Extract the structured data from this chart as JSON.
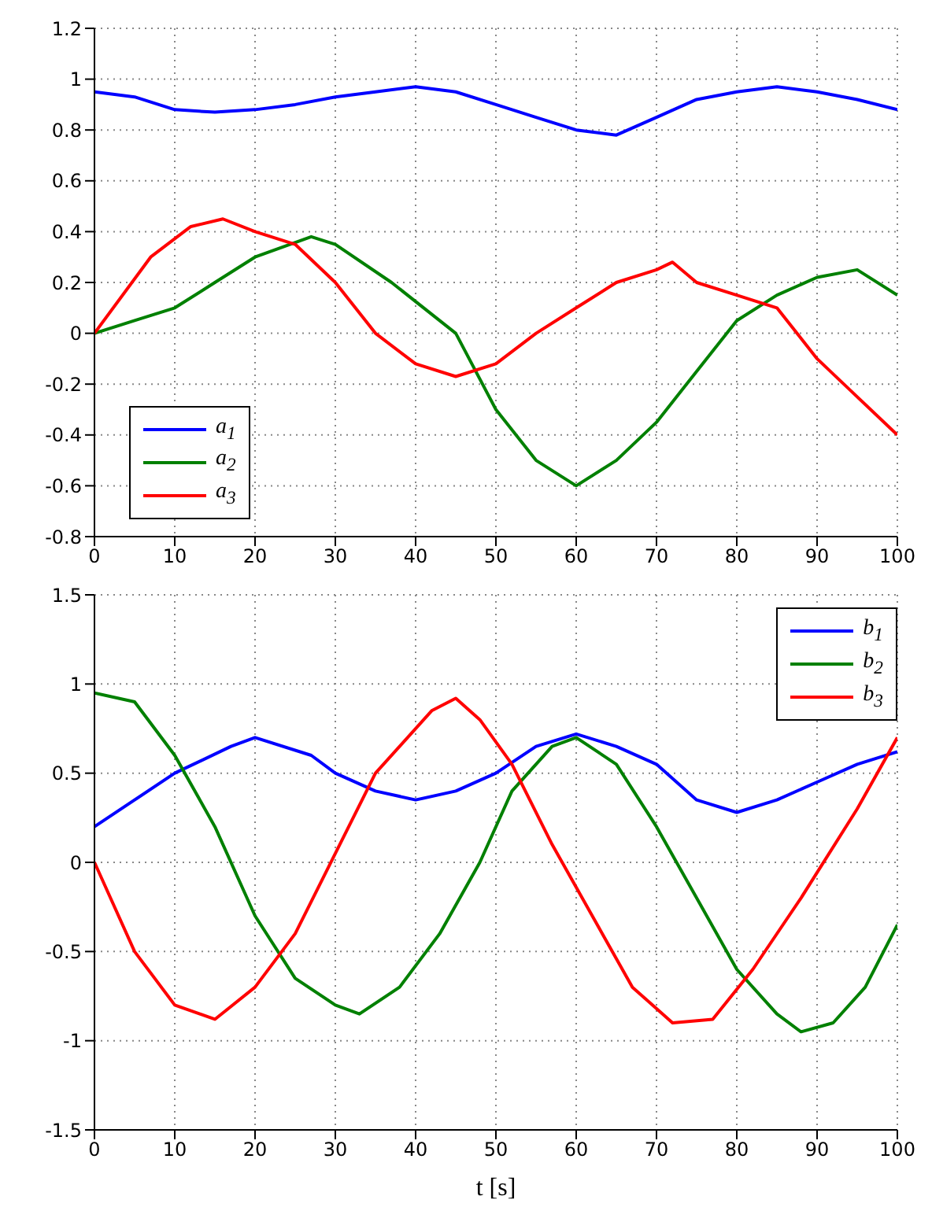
{
  "chart_data": [
    {
      "type": "line",
      "xlim": [
        0,
        100
      ],
      "xticks": [
        0,
        10,
        20,
        30,
        40,
        50,
        60,
        70,
        80,
        90,
        100
      ],
      "ylim": [
        -0.8,
        1.2
      ],
      "yticks": [
        -0.8,
        -0.6,
        -0.4,
        -0.2,
        0,
        0.2,
        0.4,
        0.6,
        0.8,
        1,
        1.2
      ],
      "grid": true,
      "legend": "bottom left",
      "line_style": "solid",
      "marker": "none",
      "series": [
        {
          "name": "a$_{1}$",
          "color": "#0000ff",
          "x": [
            0,
            5,
            10,
            15,
            20,
            25,
            30,
            35,
            40,
            45,
            50,
            55,
            60,
            65,
            70,
            75,
            80,
            85,
            90,
            95,
            100
          ],
          "values": [
            0.95,
            0.93,
            0.88,
            0.87,
            0.88,
            0.9,
            0.93,
            0.95,
            0.97,
            0.95,
            0.9,
            0.85,
            0.8,
            0.78,
            0.85,
            0.92,
            0.95,
            0.97,
            0.95,
            0.92,
            0.88
          ]
        },
        {
          "name": "a$_{2}$",
          "color": "#008000",
          "x": [
            0,
            5,
            10,
            15,
            20,
            27,
            30,
            37,
            45,
            50,
            55,
            60,
            65,
            70,
            75,
            80,
            85,
            90,
            95,
            100
          ],
          "values": [
            0,
            0.05,
            0.1,
            0.2,
            0.3,
            0.38,
            0.35,
            0.2,
            0,
            -0.3,
            -0.5,
            -0.6,
            -0.5,
            -0.35,
            -0.15,
            0.05,
            0.15,
            0.22,
            0.25,
            0.15
          ]
        },
        {
          "name": "a$_{3}$",
          "color": "#ff0000",
          "x": [
            0,
            7,
            12,
            16,
            20,
            25,
            30,
            35,
            40,
            45,
            50,
            55,
            60,
            65,
            70,
            72,
            75,
            80,
            85,
            90,
            95,
            100
          ],
          "values": [
            0,
            0.3,
            0.42,
            0.45,
            0.4,
            0.35,
            0.2,
            0,
            -0.12,
            -0.17,
            -0.12,
            0,
            0.1,
            0.2,
            0.25,
            0.28,
            0.2,
            0.15,
            0.1,
            -0.1,
            -0.25,
            -0.4
          ]
        }
      ]
    },
    {
      "type": "line",
      "xlabel": "t [s]",
      "xlim": [
        0,
        100
      ],
      "xticks": [
        0,
        10,
        20,
        30,
        40,
        50,
        60,
        70,
        80,
        90,
        100
      ],
      "ylim": [
        -1.5,
        1.5
      ],
      "yticks": [
        -1.5,
        -1,
        -0.5,
        0,
        0.5,
        1,
        1.5
      ],
      "grid": true,
      "legend": "top right",
      "line_style": "solid",
      "marker": "none",
      "series": [
        {
          "name": "b$_{1}$",
          "color": "#0000ff",
          "x": [
            0,
            5,
            10,
            17,
            20,
            27,
            30,
            35,
            40,
            45,
            50,
            55,
            60,
            65,
            70,
            75,
            80,
            85,
            90,
            95,
            100
          ],
          "values": [
            0.2,
            0.35,
            0.5,
            0.65,
            0.7,
            0.6,
            0.5,
            0.4,
            0.35,
            0.4,
            0.5,
            0.65,
            0.72,
            0.65,
            0.55,
            0.35,
            0.28,
            0.35,
            0.45,
            0.55,
            0.62
          ]
        },
        {
          "name": "b$_{2}$",
          "color": "#008000",
          "x": [
            0,
            5,
            10,
            15,
            20,
            25,
            30,
            33,
            38,
            43,
            48,
            52,
            57,
            60,
            65,
            70,
            75,
            80,
            85,
            88,
            92,
            96,
            100
          ],
          "values": [
            0.95,
            0.9,
            0.6,
            0.2,
            -0.3,
            -0.65,
            -0.8,
            -0.85,
            -0.7,
            -0.4,
            0,
            0.4,
            0.65,
            0.7,
            0.55,
            0.2,
            -0.2,
            -0.6,
            -0.85,
            -0.95,
            -0.9,
            -0.7,
            -0.35
          ]
        },
        {
          "name": "b$_{3}$",
          "color": "#ff0000",
          "x": [
            0,
            5,
            10,
            15,
            20,
            25,
            30,
            35,
            42,
            45,
            48,
            52,
            57,
            62,
            67,
            72,
            77,
            82,
            88,
            95,
            100
          ],
          "values": [
            0,
            -0.5,
            -0.8,
            -0.88,
            -0.7,
            -0.4,
            0.05,
            0.5,
            0.85,
            0.92,
            0.8,
            0.55,
            0.1,
            -0.3,
            -0.7,
            -0.9,
            -0.88,
            -0.6,
            -0.2,
            0.3,
            0.7
          ]
        }
      ]
    }
  ]
}
